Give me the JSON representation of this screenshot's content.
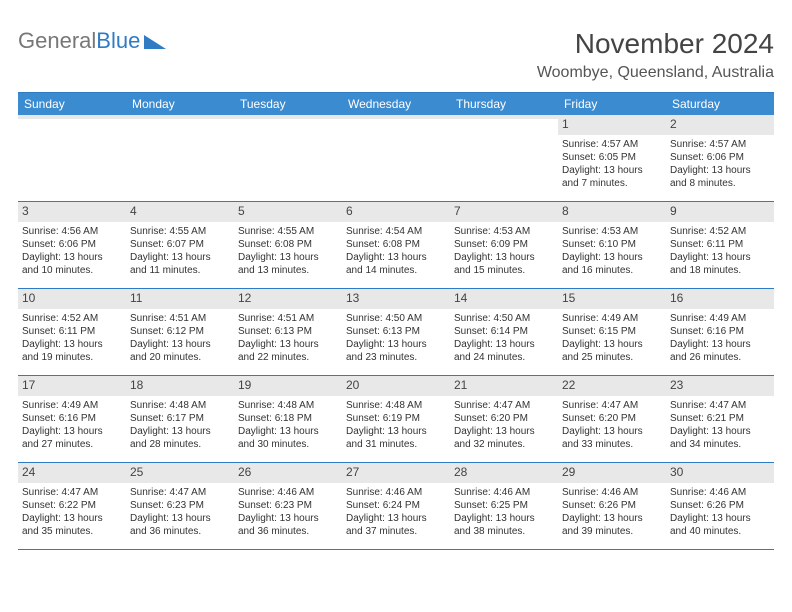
{
  "logo": {
    "part1": "General",
    "part2": "Blue"
  },
  "title": "November 2024",
  "subtitle": "Woombye, Queensland, Australia",
  "day_headers": [
    "Sunday",
    "Monday",
    "Tuesday",
    "Wednesday",
    "Thursday",
    "Friday",
    "Saturday"
  ],
  "colors": {
    "header_blue": "#3b8bd0",
    "border_blue": "#2f7cc4",
    "daynum_bg": "#e8e8e8",
    "text": "#333333",
    "title_color": "#444444"
  },
  "weeks": [
    [
      {
        "n": "",
        "sr": "",
        "ss": "",
        "dl": ""
      },
      {
        "n": "",
        "sr": "",
        "ss": "",
        "dl": ""
      },
      {
        "n": "",
        "sr": "",
        "ss": "",
        "dl": ""
      },
      {
        "n": "",
        "sr": "",
        "ss": "",
        "dl": ""
      },
      {
        "n": "",
        "sr": "",
        "ss": "",
        "dl": ""
      },
      {
        "n": "1",
        "sr": "Sunrise: 4:57 AM",
        "ss": "Sunset: 6:05 PM",
        "dl": "Daylight: 13 hours and 7 minutes."
      },
      {
        "n": "2",
        "sr": "Sunrise: 4:57 AM",
        "ss": "Sunset: 6:06 PM",
        "dl": "Daylight: 13 hours and 8 minutes."
      }
    ],
    [
      {
        "n": "3",
        "sr": "Sunrise: 4:56 AM",
        "ss": "Sunset: 6:06 PM",
        "dl": "Daylight: 13 hours and 10 minutes."
      },
      {
        "n": "4",
        "sr": "Sunrise: 4:55 AM",
        "ss": "Sunset: 6:07 PM",
        "dl": "Daylight: 13 hours and 11 minutes."
      },
      {
        "n": "5",
        "sr": "Sunrise: 4:55 AM",
        "ss": "Sunset: 6:08 PM",
        "dl": "Daylight: 13 hours and 13 minutes."
      },
      {
        "n": "6",
        "sr": "Sunrise: 4:54 AM",
        "ss": "Sunset: 6:08 PM",
        "dl": "Daylight: 13 hours and 14 minutes."
      },
      {
        "n": "7",
        "sr": "Sunrise: 4:53 AM",
        "ss": "Sunset: 6:09 PM",
        "dl": "Daylight: 13 hours and 15 minutes."
      },
      {
        "n": "8",
        "sr": "Sunrise: 4:53 AM",
        "ss": "Sunset: 6:10 PM",
        "dl": "Daylight: 13 hours and 16 minutes."
      },
      {
        "n": "9",
        "sr": "Sunrise: 4:52 AM",
        "ss": "Sunset: 6:11 PM",
        "dl": "Daylight: 13 hours and 18 minutes."
      }
    ],
    [
      {
        "n": "10",
        "sr": "Sunrise: 4:52 AM",
        "ss": "Sunset: 6:11 PM",
        "dl": "Daylight: 13 hours and 19 minutes."
      },
      {
        "n": "11",
        "sr": "Sunrise: 4:51 AM",
        "ss": "Sunset: 6:12 PM",
        "dl": "Daylight: 13 hours and 20 minutes."
      },
      {
        "n": "12",
        "sr": "Sunrise: 4:51 AM",
        "ss": "Sunset: 6:13 PM",
        "dl": "Daylight: 13 hours and 22 minutes."
      },
      {
        "n": "13",
        "sr": "Sunrise: 4:50 AM",
        "ss": "Sunset: 6:13 PM",
        "dl": "Daylight: 13 hours and 23 minutes."
      },
      {
        "n": "14",
        "sr": "Sunrise: 4:50 AM",
        "ss": "Sunset: 6:14 PM",
        "dl": "Daylight: 13 hours and 24 minutes."
      },
      {
        "n": "15",
        "sr": "Sunrise: 4:49 AM",
        "ss": "Sunset: 6:15 PM",
        "dl": "Daylight: 13 hours and 25 minutes."
      },
      {
        "n": "16",
        "sr": "Sunrise: 4:49 AM",
        "ss": "Sunset: 6:16 PM",
        "dl": "Daylight: 13 hours and 26 minutes."
      }
    ],
    [
      {
        "n": "17",
        "sr": "Sunrise: 4:49 AM",
        "ss": "Sunset: 6:16 PM",
        "dl": "Daylight: 13 hours and 27 minutes."
      },
      {
        "n": "18",
        "sr": "Sunrise: 4:48 AM",
        "ss": "Sunset: 6:17 PM",
        "dl": "Daylight: 13 hours and 28 minutes."
      },
      {
        "n": "19",
        "sr": "Sunrise: 4:48 AM",
        "ss": "Sunset: 6:18 PM",
        "dl": "Daylight: 13 hours and 30 minutes."
      },
      {
        "n": "20",
        "sr": "Sunrise: 4:48 AM",
        "ss": "Sunset: 6:19 PM",
        "dl": "Daylight: 13 hours and 31 minutes."
      },
      {
        "n": "21",
        "sr": "Sunrise: 4:47 AM",
        "ss": "Sunset: 6:20 PM",
        "dl": "Daylight: 13 hours and 32 minutes."
      },
      {
        "n": "22",
        "sr": "Sunrise: 4:47 AM",
        "ss": "Sunset: 6:20 PM",
        "dl": "Daylight: 13 hours and 33 minutes."
      },
      {
        "n": "23",
        "sr": "Sunrise: 4:47 AM",
        "ss": "Sunset: 6:21 PM",
        "dl": "Daylight: 13 hours and 34 minutes."
      }
    ],
    [
      {
        "n": "24",
        "sr": "Sunrise: 4:47 AM",
        "ss": "Sunset: 6:22 PM",
        "dl": "Daylight: 13 hours and 35 minutes."
      },
      {
        "n": "25",
        "sr": "Sunrise: 4:47 AM",
        "ss": "Sunset: 6:23 PM",
        "dl": "Daylight: 13 hours and 36 minutes."
      },
      {
        "n": "26",
        "sr": "Sunrise: 4:46 AM",
        "ss": "Sunset: 6:23 PM",
        "dl": "Daylight: 13 hours and 36 minutes."
      },
      {
        "n": "27",
        "sr": "Sunrise: 4:46 AM",
        "ss": "Sunset: 6:24 PM",
        "dl": "Daylight: 13 hours and 37 minutes."
      },
      {
        "n": "28",
        "sr": "Sunrise: 4:46 AM",
        "ss": "Sunset: 6:25 PM",
        "dl": "Daylight: 13 hours and 38 minutes."
      },
      {
        "n": "29",
        "sr": "Sunrise: 4:46 AM",
        "ss": "Sunset: 6:26 PM",
        "dl": "Daylight: 13 hours and 39 minutes."
      },
      {
        "n": "30",
        "sr": "Sunrise: 4:46 AM",
        "ss": "Sunset: 6:26 PM",
        "dl": "Daylight: 13 hours and 40 minutes."
      }
    ]
  ]
}
